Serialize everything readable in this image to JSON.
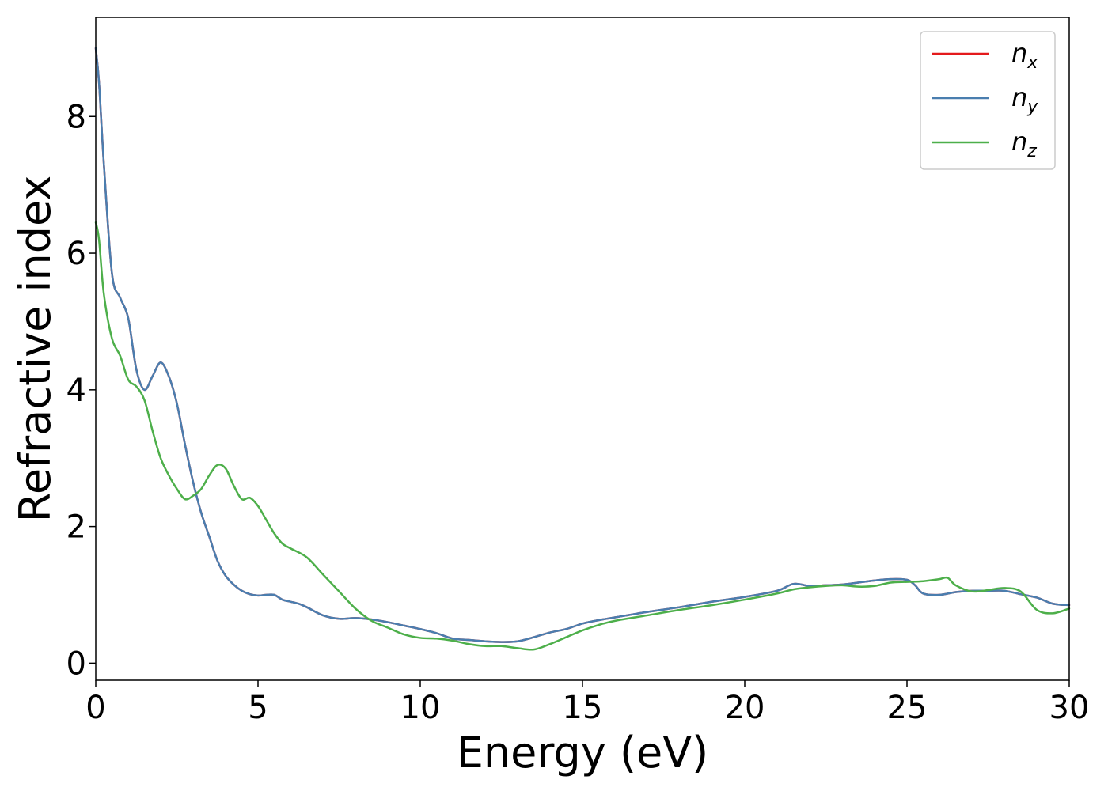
{
  "chart_data": {
    "type": "line",
    "xlabel": "Energy (eV)",
    "ylabel": "Refractive index",
    "xlim": [
      0,
      30
    ],
    "ylim": [
      -0.25,
      9.45
    ],
    "x_ticks": [
      0,
      5,
      10,
      15,
      20,
      25,
      30
    ],
    "x_tick_labels": [
      "0",
      "5",
      "10",
      "15",
      "20",
      "25",
      "30"
    ],
    "y_ticks": [
      0,
      2,
      4,
      6,
      8
    ],
    "y_tick_labels": [
      "0",
      "2",
      "4",
      "6",
      "8"
    ],
    "grid": false,
    "legend_position": "top-right",
    "series": [
      {
        "name": "n_x",
        "label_base": "n",
        "label_sub": "x",
        "color": "#e41a1c",
        "x": [
          0,
          0.1,
          0.25,
          0.5,
          0.75,
          1.0,
          1.25,
          1.5,
          1.75,
          2.0,
          2.25,
          2.5,
          2.75,
          3.0,
          3.25,
          3.5,
          3.75,
          4.0,
          4.25,
          4.5,
          4.75,
          5.0,
          5.25,
          5.5,
          5.75,
          6.0,
          6.25,
          6.5,
          7.0,
          7.5,
          8.0,
          8.5,
          9.0,
          9.5,
          10.0,
          10.5,
          11.0,
          11.5,
          12.0,
          12.5,
          13.0,
          13.5,
          14.0,
          14.5,
          15.0,
          15.5,
          16.0,
          17.0,
          18.0,
          19.0,
          20.0,
          21.0,
          21.5,
          22.0,
          22.5,
          23.0,
          23.5,
          24.0,
          24.5,
          25.0,
          25.25,
          25.5,
          26.0,
          26.5,
          27.0,
          27.5,
          28.0,
          28.5,
          29.0,
          29.5,
          30.0
        ],
        "y": [
          9.0,
          8.5,
          7.3,
          5.7,
          5.35,
          5.05,
          4.3,
          4.0,
          4.2,
          4.4,
          4.2,
          3.8,
          3.2,
          2.65,
          2.2,
          1.85,
          1.5,
          1.28,
          1.15,
          1.06,
          1.01,
          0.99,
          1.0,
          1.0,
          0.93,
          0.9,
          0.87,
          0.82,
          0.7,
          0.65,
          0.66,
          0.64,
          0.6,
          0.55,
          0.5,
          0.44,
          0.36,
          0.34,
          0.32,
          0.31,
          0.32,
          0.38,
          0.45,
          0.5,
          0.58,
          0.63,
          0.67,
          0.75,
          0.82,
          0.9,
          0.97,
          1.06,
          1.16,
          1.13,
          1.14,
          1.15,
          1.18,
          1.21,
          1.23,
          1.22,
          1.14,
          1.02,
          1.0,
          1.04,
          1.06,
          1.06,
          1.06,
          1.01,
          0.96,
          0.87,
          0.85
        ]
      },
      {
        "name": "n_y",
        "label_base": "n",
        "label_sub": "y",
        "color": "#4a7eaf",
        "x": [
          0,
          0.1,
          0.25,
          0.5,
          0.75,
          1.0,
          1.25,
          1.5,
          1.75,
          2.0,
          2.25,
          2.5,
          2.75,
          3.0,
          3.25,
          3.5,
          3.75,
          4.0,
          4.25,
          4.5,
          4.75,
          5.0,
          5.25,
          5.5,
          5.75,
          6.0,
          6.25,
          6.5,
          7.0,
          7.5,
          8.0,
          8.5,
          9.0,
          9.5,
          10.0,
          10.5,
          11.0,
          11.5,
          12.0,
          12.5,
          13.0,
          13.5,
          14.0,
          14.5,
          15.0,
          15.5,
          16.0,
          17.0,
          18.0,
          19.0,
          20.0,
          21.0,
          21.5,
          22.0,
          22.5,
          23.0,
          23.5,
          24.0,
          24.5,
          25.0,
          25.25,
          25.5,
          26.0,
          26.5,
          27.0,
          27.5,
          28.0,
          28.5,
          29.0,
          29.5,
          30.0
        ],
        "y": [
          9.0,
          8.5,
          7.3,
          5.7,
          5.35,
          5.05,
          4.3,
          4.0,
          4.2,
          4.4,
          4.2,
          3.8,
          3.2,
          2.65,
          2.2,
          1.85,
          1.5,
          1.28,
          1.15,
          1.06,
          1.01,
          0.99,
          1.0,
          1.0,
          0.93,
          0.9,
          0.87,
          0.82,
          0.7,
          0.65,
          0.66,
          0.64,
          0.6,
          0.55,
          0.5,
          0.44,
          0.36,
          0.34,
          0.32,
          0.31,
          0.32,
          0.38,
          0.45,
          0.5,
          0.58,
          0.63,
          0.67,
          0.75,
          0.82,
          0.9,
          0.97,
          1.06,
          1.16,
          1.13,
          1.14,
          1.15,
          1.18,
          1.21,
          1.23,
          1.22,
          1.14,
          1.02,
          1.0,
          1.04,
          1.06,
          1.06,
          1.06,
          1.01,
          0.96,
          0.87,
          0.85
        ]
      },
      {
        "name": "n_z",
        "label_base": "n",
        "label_sub": "z",
        "color": "#4daf4a",
        "x": [
          0,
          0.1,
          0.25,
          0.5,
          0.75,
          1.0,
          1.25,
          1.5,
          1.75,
          2.0,
          2.25,
          2.5,
          2.75,
          3.0,
          3.25,
          3.5,
          3.75,
          4.0,
          4.25,
          4.5,
          4.75,
          5.0,
          5.25,
          5.5,
          5.75,
          6.0,
          6.5,
          7.0,
          7.5,
          8.0,
          8.5,
          9.0,
          9.5,
          10.0,
          10.5,
          11.0,
          11.5,
          12.0,
          12.5,
          13.0,
          13.5,
          14.0,
          14.5,
          15.0,
          15.5,
          16.0,
          17.0,
          18.0,
          19.0,
          20.0,
          21.0,
          21.5,
          22.0,
          22.5,
          23.0,
          23.5,
          24.0,
          24.5,
          25.0,
          25.5,
          26.0,
          26.25,
          26.5,
          27.0,
          27.5,
          28.0,
          28.5,
          29.0,
          29.5,
          30.0
        ],
        "y": [
          6.45,
          6.2,
          5.4,
          4.75,
          4.5,
          4.15,
          4.05,
          3.85,
          3.4,
          3.0,
          2.75,
          2.55,
          2.4,
          2.45,
          2.55,
          2.75,
          2.9,
          2.85,
          2.6,
          2.4,
          2.42,
          2.3,
          2.1,
          1.9,
          1.75,
          1.68,
          1.55,
          1.3,
          1.05,
          0.8,
          0.62,
          0.52,
          0.42,
          0.37,
          0.36,
          0.33,
          0.28,
          0.25,
          0.25,
          0.22,
          0.2,
          0.28,
          0.38,
          0.48,
          0.56,
          0.62,
          0.7,
          0.78,
          0.85,
          0.93,
          1.02,
          1.08,
          1.11,
          1.13,
          1.14,
          1.12,
          1.13,
          1.18,
          1.19,
          1.2,
          1.23,
          1.25,
          1.14,
          1.05,
          1.07,
          1.1,
          1.05,
          0.78,
          0.73,
          0.8
        ]
      }
    ]
  }
}
